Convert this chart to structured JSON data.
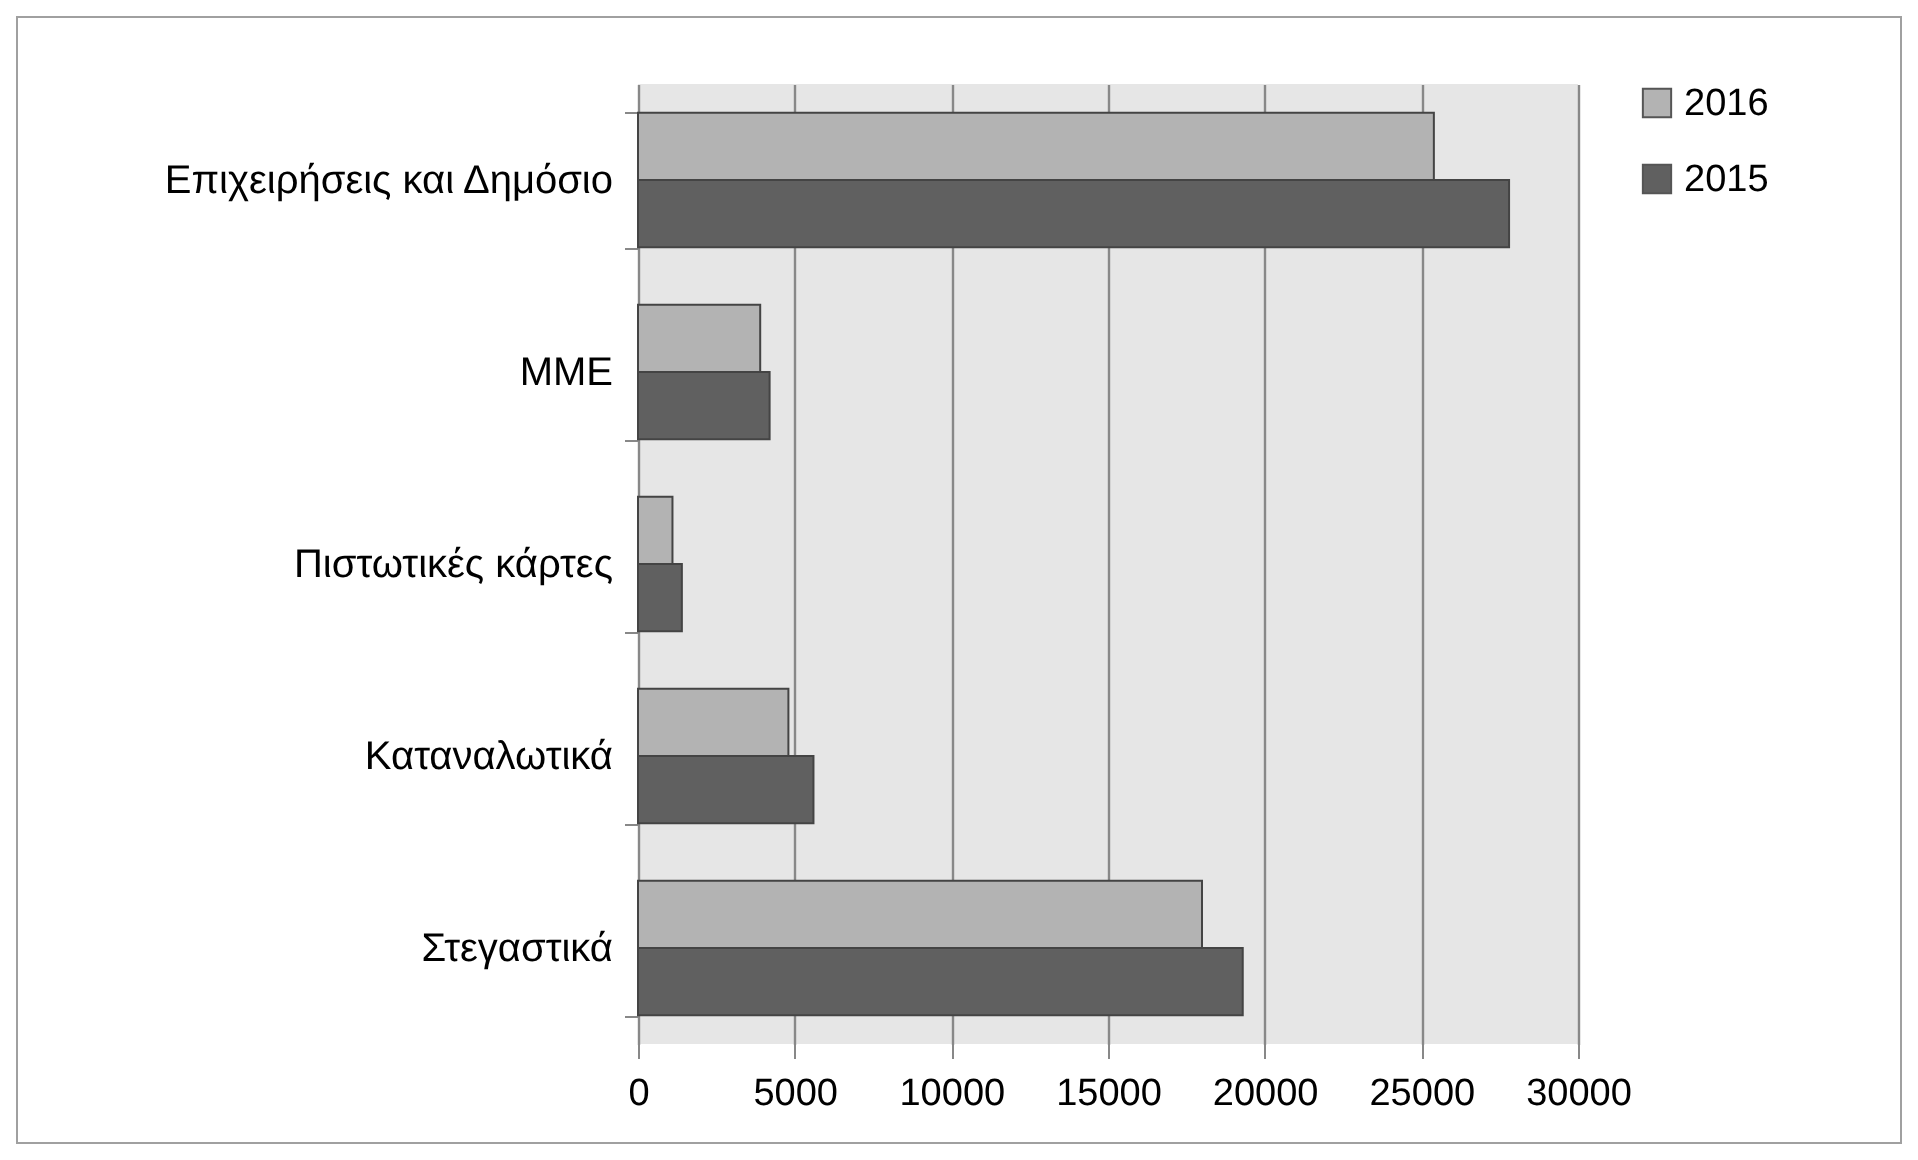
{
  "chart_data": {
    "type": "bar",
    "orientation": "horizontal",
    "categories": [
      "Επιχειρήσεις και Δημόσιο",
      "ΜΜΕ",
      "Πιστωτικές κάρτες",
      "Καταναλωτικά",
      "Στεγαστικά"
    ],
    "series": [
      {
        "name": "2016",
        "color": "#b3b3b3",
        "values": [
          25400,
          3900,
          1100,
          4800,
          18000
        ]
      },
      {
        "name": "2015",
        "color": "#606060",
        "values": [
          27800,
          4200,
          1400,
          5600,
          19300
        ]
      }
    ],
    "xlim": [
      0,
      30000
    ],
    "xticks": [
      0,
      5000,
      10000,
      15000,
      20000,
      25000,
      30000
    ],
    "grid": "x",
    "legend": "right"
  }
}
